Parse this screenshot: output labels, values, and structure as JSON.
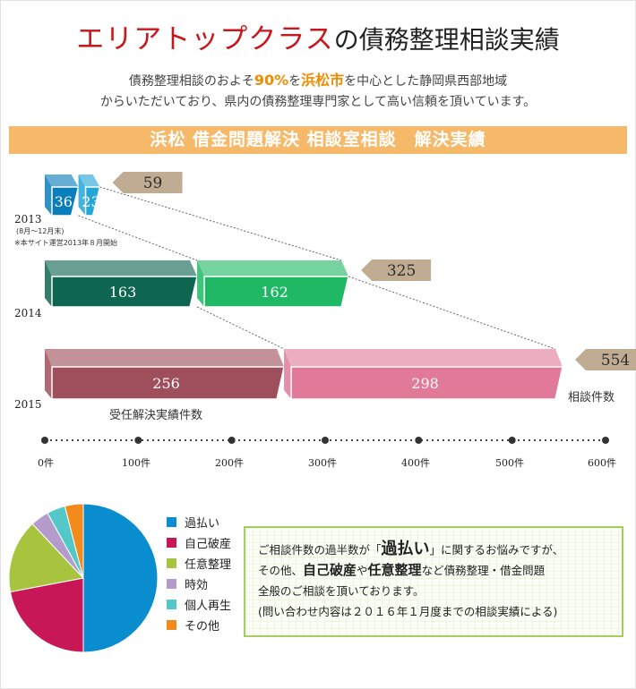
{
  "header": {
    "title_red": "エリアトップクラス",
    "title_rest": "の債務整理相談実績"
  },
  "intro": {
    "l1_a": "債務整理相談のおよそ",
    "l1_pct": "90%",
    "l1_b": "を",
    "l1_city": "浜松市",
    "l1_c": "を中心とした静岡県西部地域",
    "l2": "からいただいており、県内の債務整理専門家として高い信頼を頂いています。"
  },
  "banner": "浜松 借金問題解決 相談室相談　解決実績",
  "chart_data": [
    {
      "type": "bar",
      "orientation": "horizontal",
      "stacked": true,
      "title": "浜松 借金問題解決 相談室相談　解決実績",
      "categories": [
        "2013",
        "2014",
        "2015"
      ],
      "category_notes": [
        "(8月～12月末)",
        "",
        ""
      ],
      "footnote": "※本サイト運営2013年８月開始",
      "series": [
        {
          "name": "受任解決実績件数",
          "values": [
            36,
            163,
            256
          ],
          "colors": [
            "#0a7dbb",
            "#0f6650",
            "#9e4f5b"
          ]
        },
        {
          "name": "",
          "values": [
            23,
            162,
            298
          ],
          "colors": [
            "#23a6d8",
            "#21b865",
            "#e07a98"
          ]
        }
      ],
      "totals": [
        59,
        325,
        554
      ],
      "totals_label": "相談件数",
      "xlim": [
        0,
        600
      ],
      "xticks": [
        "0件",
        "100件",
        "200件",
        "300件",
        "400件",
        "500件",
        "600件"
      ],
      "tick_values": [
        0,
        100,
        200,
        300,
        400,
        500,
        600
      ],
      "grid": false
    },
    {
      "type": "pie",
      "categories": [
        "過払い",
        "自己破産",
        "任意整理",
        "時効",
        "個人再生",
        "その他"
      ],
      "values": [
        50,
        22,
        16,
        4,
        4,
        4
      ],
      "colors": [
        "#0a8dcf",
        "#c81756",
        "#a8c43e",
        "#b39bcc",
        "#54c8c8",
        "#f38a1c"
      ],
      "legend": "right"
    }
  ],
  "info": {
    "l1_a": "ご相談件数の過半数が「",
    "l1_b": "過払い",
    "l1_c": "」に関するお悩みですが、",
    "l2_a": "その他、",
    "l2_b": "自己破産",
    "l2_c": "や",
    "l2_d": "任意整理",
    "l2_e": "など債務整理・借金問題",
    "l3": "全般のご相談を頂いております。",
    "l4": "(問い合わせ内容は２０１６年１月度までの相談実績による)"
  }
}
